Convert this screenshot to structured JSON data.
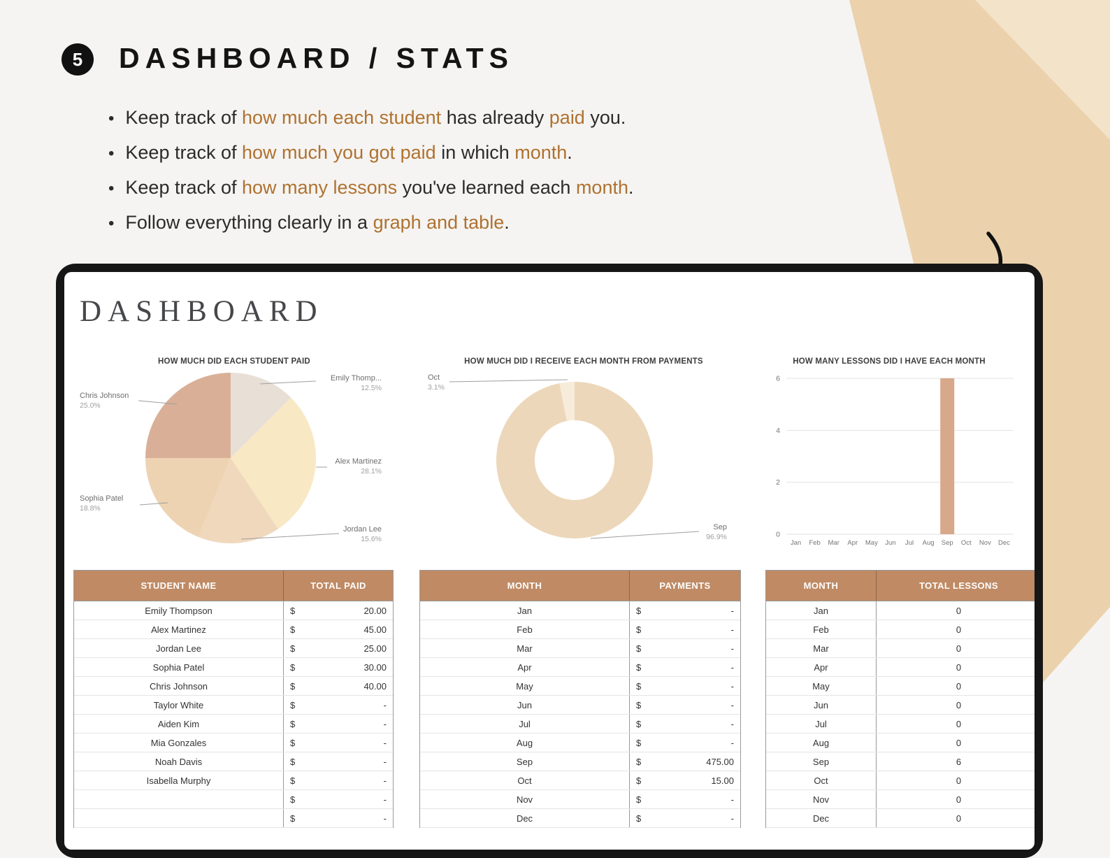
{
  "intro": {
    "badge": "5",
    "title": "DASHBOARD / STATS",
    "bullets": {
      "b1": {
        "p1": "Keep track of ",
        "p2": "how much each student",
        "p3": " has already ",
        "p4": "paid",
        "p5": " you."
      },
      "b2": {
        "p1": "Keep track of ",
        "p2": "how much you got paid",
        "p3": " in which ",
        "p4": "month",
        "p5": "."
      },
      "b3": {
        "p1": "Keep track of ",
        "p2": "how many lessons",
        "p3": " you've learned each ",
        "p4": "month",
        "p5": "."
      },
      "b4": {
        "p1": "Follow everything clearly in a ",
        "p2": "graph and table",
        "p3": "."
      }
    }
  },
  "dashboard": {
    "title": "DASHBOARD"
  },
  "chart_data": [
    {
      "type": "pie",
      "title": "HOW MUCH DID EACH STUDENT PAID",
      "legend_position": "labels-with-leader-lines",
      "slices": [
        {
          "label": "Emily Thomp...",
          "pct": 12.5,
          "pct_label": "12.5%"
        },
        {
          "label": "Alex Martinez",
          "pct": 28.1,
          "pct_label": "28.1%"
        },
        {
          "label": "Jordan Lee",
          "pct": 15.6,
          "pct_label": "15.6%"
        },
        {
          "label": "Sophia Patel",
          "pct": 18.8,
          "pct_label": "18.8%"
        },
        {
          "label": "Chris Johnson",
          "pct": 25.0,
          "pct_label": "25.0%"
        }
      ],
      "colors": [
        "#e8e0d7",
        "#f8e8c4",
        "#f0d8bd",
        "#edd3b2",
        "#d9b097"
      ]
    },
    {
      "type": "pie",
      "subtype": "donut",
      "title": "HOW MUCH DID I RECEIVE EACH MONTH FROM PAYMENTS",
      "slices": [
        {
          "label": "Sep",
          "pct": 96.9,
          "pct_label": "96.9%"
        },
        {
          "label": "Oct",
          "pct": 3.1,
          "pct_label": "3.1%"
        }
      ],
      "colors": [
        "#edd7ba",
        "#f7ecda"
      ]
    },
    {
      "type": "bar",
      "title": "HOW MANY LESSONS DID I HAVE EACH MONTH",
      "categories": [
        "Jan",
        "Feb",
        "Mar",
        "Apr",
        "May",
        "Jun",
        "Jul",
        "Aug",
        "Sep",
        "Oct",
        "Nov",
        "Dec"
      ],
      "values": [
        0,
        0,
        0,
        0,
        0,
        0,
        0,
        0,
        6,
        0,
        0,
        0
      ],
      "ylim": [
        0,
        6
      ],
      "yticks": [
        0,
        2,
        4,
        6
      ],
      "grid": true,
      "bar_color": "#d8a88a"
    }
  ],
  "tables": {
    "students": {
      "headers": [
        "STUDENT NAME",
        "TOTAL PAID"
      ],
      "currency": "$",
      "rows": [
        {
          "name": "Emily Thompson",
          "amount": "20.00"
        },
        {
          "name": "Alex Martinez",
          "amount": "45.00"
        },
        {
          "name": "Jordan Lee",
          "amount": "25.00"
        },
        {
          "name": "Sophia Patel",
          "amount": "30.00"
        },
        {
          "name": "Chris Johnson",
          "amount": "40.00"
        },
        {
          "name": "Taylor White",
          "amount": "-"
        },
        {
          "name": "Aiden Kim",
          "amount": "-"
        },
        {
          "name": "Mia Gonzales",
          "amount": "-"
        },
        {
          "name": "Noah Davis",
          "amount": "-"
        },
        {
          "name": "Isabella Murphy",
          "amount": "-"
        },
        {
          "name": "",
          "amount": "-"
        },
        {
          "name": "",
          "amount": "-"
        }
      ]
    },
    "payments": {
      "headers": [
        "MONTH",
        "PAYMENTS"
      ],
      "currency": "$",
      "rows": [
        {
          "month": "Jan",
          "amount": "-"
        },
        {
          "month": "Feb",
          "amount": "-"
        },
        {
          "month": "Mar",
          "amount": "-"
        },
        {
          "month": "Apr",
          "amount": "-"
        },
        {
          "month": "May",
          "amount": "-"
        },
        {
          "month": "Jun",
          "amount": "-"
        },
        {
          "month": "Jul",
          "amount": "-"
        },
        {
          "month": "Aug",
          "amount": "-"
        },
        {
          "month": "Sep",
          "amount": "475.00"
        },
        {
          "month": "Oct",
          "amount": "15.00"
        },
        {
          "month": "Nov",
          "amount": "-"
        },
        {
          "month": "Dec",
          "amount": "-"
        }
      ]
    },
    "lessons": {
      "headers": [
        "MONTH",
        "TOTAL LESSONS"
      ],
      "rows": [
        {
          "month": "Jan",
          "total": "0"
        },
        {
          "month": "Feb",
          "total": "0"
        },
        {
          "month": "Mar",
          "total": "0"
        },
        {
          "month": "Apr",
          "total": "0"
        },
        {
          "month": "May",
          "total": "0"
        },
        {
          "month": "Jun",
          "total": "0"
        },
        {
          "month": "Jul",
          "total": "0"
        },
        {
          "month": "Aug",
          "total": "0"
        },
        {
          "month": "Sep",
          "total": "6"
        },
        {
          "month": "Oct",
          "total": "0"
        },
        {
          "month": "Nov",
          "total": "0"
        },
        {
          "month": "Dec",
          "total": "0"
        }
      ]
    }
  },
  "colors": {
    "accent_text": "#af7230",
    "table_header": "#bf8a64",
    "background_wedge": "#ebd2ad",
    "bar": "#d8a88a"
  }
}
